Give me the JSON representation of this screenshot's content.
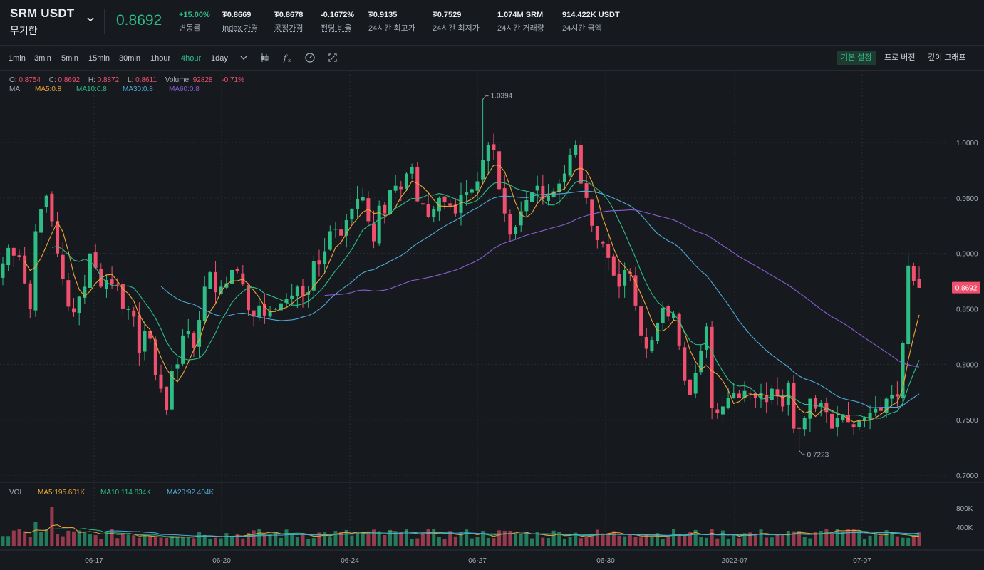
{
  "header": {
    "symbol": "SRM USDT",
    "contract_type": "무기한",
    "last_price": "0.8692",
    "stats": [
      {
        "value": "+15.00%",
        "label": "변동률",
        "color": "#2ebd85"
      },
      {
        "value": "₮0.8669",
        "label": "Index 가격"
      },
      {
        "value": "₮0.8678",
        "label": "공정가격"
      },
      {
        "value": "-0.1672%",
        "label": "펀딩 비율"
      },
      {
        "value": "₮0.9135",
        "label": "24시간 최고가"
      },
      {
        "value": "₮0.7529",
        "label": "24시간 최저가"
      },
      {
        "value": "1.074M SRM",
        "label": "24시간 거래량"
      },
      {
        "value": "914.422K USDT",
        "label": "24시간 금액"
      }
    ]
  },
  "toolbar": {
    "timeframes": [
      "1min",
      "3min",
      "5min",
      "15min",
      "30min",
      "1hour",
      "4hour",
      "1day"
    ],
    "active_timeframe": "4hour",
    "icons": [
      "chevron-down-icon",
      "candlestick-icon",
      "indicator-fx-icon",
      "settings-gauge-icon",
      "fullscreen-icon"
    ],
    "view_buttons": [
      "기본 설정",
      "프로 버전",
      "깊이 그래프"
    ],
    "active_view": "기본 설정"
  },
  "ohlc": {
    "o_label": "O:",
    "o": "0.8754",
    "c_label": "C:",
    "c": "0.8692",
    "h_label": "H:",
    "h": "0.8872",
    "l_label": "L:",
    "l": "0.8611",
    "volume_label": "Volume:",
    "volume": "92828",
    "change": "-0.71%"
  },
  "ma_legend": {
    "label": "MA",
    "items": [
      "MA5:0.8",
      "MA10:0.8",
      "MA30:0.8",
      "MA60:0.8"
    ]
  },
  "vol_legend": {
    "label": "VOL",
    "items": [
      "MA5:195.601K",
      "MA10:114.834K",
      "MA20:92.404K"
    ]
  },
  "colors": {
    "up": "#2ebd85",
    "down": "#f0506e",
    "ma5": "#f0a537",
    "ma10": "#2ebd85",
    "ma30": "#4fa9d8",
    "ma60": "#8b5cd6",
    "background": "#161a1e",
    "grid": "#2a2e35"
  },
  "chart_data": {
    "type": "candlestick",
    "ylim": [
      0.7,
      1.05
    ],
    "y_ticks": [
      "1.0000",
      "0.9500",
      "0.9000",
      "0.8500",
      "0.8000",
      "0.7500",
      "0.7000"
    ],
    "x_ticks": [
      "06-17",
      "06-20",
      "06-24",
      "06-27",
      "06-30",
      "2022-07",
      "07-07"
    ],
    "last_price_label": "0.8692",
    "high_annotation": "1.0394",
    "low_annotation": "0.7223",
    "volume_ticks": [
      "800K",
      "400K"
    ],
    "closes": [
      0.891,
      0.905,
      0.898,
      0.897,
      0.873,
      0.85,
      0.92,
      0.94,
      0.952,
      0.929,
      0.9,
      0.877,
      0.852,
      0.847,
      0.861,
      0.87,
      0.9,
      0.887,
      0.87,
      0.876,
      0.872,
      0.871,
      0.85,
      0.85,
      0.843,
      0.81,
      0.83,
      0.823,
      0.79,
      0.778,
      0.759,
      0.794,
      0.8,
      0.826,
      0.83,
      0.815,
      0.84,
      0.87,
      0.883,
      0.865,
      0.87,
      0.873,
      0.885,
      0.884,
      0.872,
      0.849,
      0.843,
      0.853,
      0.844,
      0.848,
      0.85,
      0.855,
      0.859,
      0.862,
      0.87,
      0.862,
      0.865,
      0.893,
      0.89,
      0.902,
      0.92,
      0.922,
      0.916,
      0.93,
      0.94,
      0.949,
      0.951,
      0.929,
      0.911,
      0.943,
      0.936,
      0.957,
      0.961,
      0.958,
      0.972,
      0.978,
      0.947,
      0.944,
      0.933,
      0.94,
      0.95,
      0.946,
      0.943,
      0.936,
      0.953,
      0.955,
      0.958,
      0.965,
      0.984,
      0.998,
      0.993,
      0.958,
      0.936,
      0.917,
      0.924,
      0.938,
      0.948,
      0.955,
      0.961,
      0.949,
      0.952,
      0.956,
      0.963,
      0.972,
      0.989,
      0.998,
      0.963,
      0.95,
      0.925,
      0.912,
      0.909,
      0.896,
      0.88,
      0.87,
      0.885,
      0.882,
      0.853,
      0.826,
      0.814,
      0.822,
      0.837,
      0.851,
      0.843,
      0.846,
      0.817,
      0.785,
      0.772,
      0.792,
      0.812,
      0.834,
      0.761,
      0.756,
      0.762,
      0.77,
      0.774,
      0.77,
      0.776,
      0.774,
      0.77,
      0.774,
      0.766,
      0.778,
      0.771,
      0.762,
      0.783,
      0.742,
      0.742,
      0.752,
      0.769,
      0.76,
      0.765,
      0.757,
      0.742,
      0.752,
      0.755,
      0.748,
      0.743,
      0.749,
      0.752,
      0.756,
      0.76,
      0.758,
      0.769,
      0.772,
      0.771,
      0.819,
      0.889,
      0.875,
      0.869
    ]
  }
}
